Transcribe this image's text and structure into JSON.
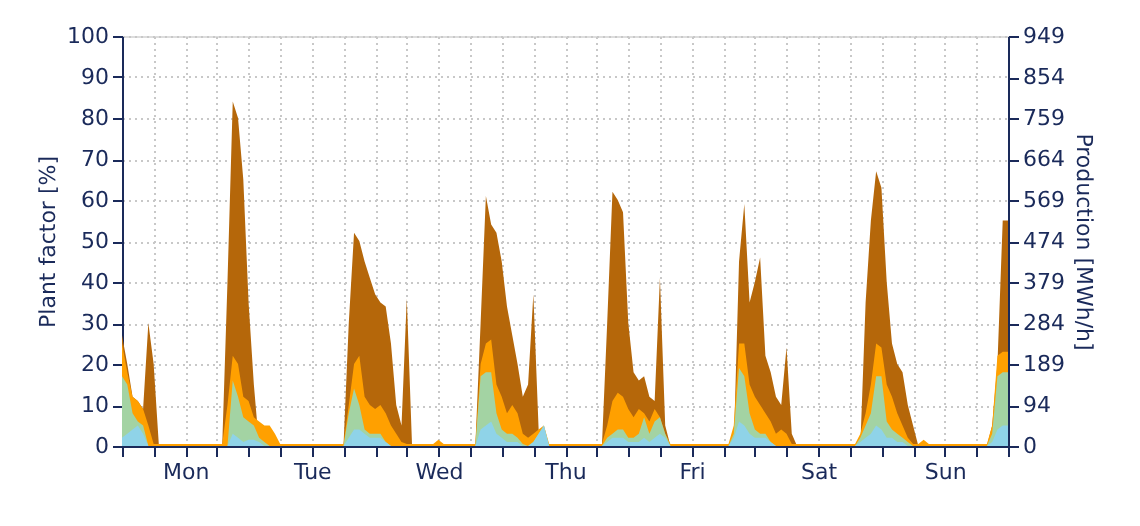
{
  "chart_data": {
    "type": "area",
    "ylabel": "Plant factor [%]",
    "y2label": "Production [MWh/h]",
    "ylim": [
      0,
      100
    ],
    "yticks": [
      0,
      10,
      20,
      30,
      40,
      50,
      60,
      70,
      80,
      90,
      100
    ],
    "y2lim": [
      0,
      949
    ],
    "y2ticks": [
      0,
      94,
      189,
      284,
      379,
      474,
      569,
      664,
      759,
      854,
      949
    ],
    "categories": [
      null,
      null,
      null,
      null,
      null,
      null,
      null,
      null,
      null,
      null,
      null,
      null,
      "Mon",
      null,
      null,
      null,
      null,
      null,
      null,
      null,
      null,
      null,
      null,
      null,
      null,
      null,
      null,
      null,
      null,
      null,
      null,
      null,
      null,
      null,
      null,
      null,
      "Tue",
      null,
      null,
      null,
      null,
      null,
      null,
      null,
      null,
      null,
      null,
      null,
      null,
      null,
      null,
      null,
      null,
      null,
      null,
      null,
      null,
      null,
      null,
      null,
      "Wed",
      null,
      null,
      null,
      null,
      null,
      null,
      null,
      null,
      null,
      null,
      null,
      null,
      null,
      null,
      null,
      null,
      null,
      null,
      null,
      null,
      null,
      null,
      null,
      "Thu",
      null,
      null,
      null,
      null,
      null,
      null,
      null,
      null,
      null,
      null,
      null,
      null,
      null,
      null,
      null,
      null,
      null,
      null,
      null,
      null,
      null,
      null,
      null,
      "Fri",
      null,
      null,
      null,
      null,
      null,
      null,
      null,
      null,
      null,
      null,
      null,
      null,
      null,
      null,
      null,
      null,
      null,
      null,
      null,
      null,
      null,
      null,
      null,
      "Sat",
      null,
      null,
      null,
      null,
      null,
      null,
      null,
      null,
      null,
      null,
      null,
      null,
      null,
      null,
      null,
      null,
      null,
      null,
      null,
      null,
      null,
      null,
      null,
      "Sun",
      null,
      null,
      null,
      null,
      null,
      null,
      null,
      null,
      null,
      null,
      null,
      null
    ],
    "grid": true,
    "series": [
      {
        "color": "#b5670a",
        "values": [
          27,
          20,
          12,
          11,
          9,
          30,
          20,
          0,
          0,
          0,
          0,
          0,
          0,
          0,
          0,
          0,
          0,
          0,
          0,
          0,
          40,
          84,
          80,
          65,
          35,
          15,
          0,
          0,
          0,
          0,
          0,
          0,
          0,
          0,
          0,
          0,
          0,
          0,
          0,
          0,
          0,
          0,
          0,
          30,
          52,
          50,
          45,
          41,
          37,
          35,
          34,
          25,
          10,
          5,
          36,
          0,
          0,
          0,
          0,
          0,
          0,
          0,
          0,
          0,
          0,
          0,
          0,
          0,
          30,
          61,
          54,
          52,
          45,
          34,
          27,
          20,
          12,
          15,
          37,
          4,
          0,
          0,
          0,
          0,
          0,
          0,
          0,
          0,
          0,
          0,
          0,
          0,
          30,
          62,
          60,
          57,
          30,
          18,
          16,
          17,
          12,
          11,
          41,
          5,
          0,
          0,
          0,
          0,
          0,
          0,
          0,
          0,
          0,
          0,
          0,
          0,
          0,
          45,
          59,
          35,
          40,
          46,
          22,
          18,
          12,
          10,
          24,
          3,
          0,
          0,
          0,
          0,
          0,
          0,
          0,
          0,
          0,
          0,
          0,
          0,
          0,
          35,
          55,
          67,
          63,
          40,
          25,
          20,
          18,
          10,
          5,
          0,
          0,
          0,
          0,
          0,
          0,
          0,
          0,
          0,
          0,
          0,
          0,
          0,
          0,
          5,
          20,
          55,
          55
        ]
      },
      {
        "color": "#ffa000",
        "values": [
          25,
          18,
          12,
          11,
          9,
          5,
          0.5,
          0.5,
          0.5,
          0.5,
          0.5,
          0.5,
          0.5,
          0.5,
          0.5,
          0.5,
          0.5,
          0.5,
          0.5,
          0.5,
          10,
          22,
          20,
          12,
          11,
          7,
          6,
          5,
          5,
          3,
          0.5,
          0.5,
          0.5,
          0.5,
          0.5,
          0.5,
          0.5,
          0.5,
          0.5,
          0.5,
          0.5,
          0.5,
          0.5,
          10,
          20,
          22,
          12,
          10,
          9,
          10,
          8,
          5,
          3,
          1,
          0.5,
          0.5,
          0.5,
          0.5,
          0.5,
          0.5,
          1.5,
          0.5,
          0.5,
          0.5,
          0.5,
          0.5,
          0.5,
          0.5,
          20,
          25,
          26,
          15,
          12,
          8,
          10,
          8,
          3,
          2,
          3,
          4,
          5,
          0.5,
          0.5,
          0.5,
          0.5,
          0.5,
          0.5,
          0.5,
          0.5,
          0.5,
          0.5,
          0.5,
          5,
          11,
          13,
          12,
          9,
          7,
          9,
          8,
          6,
          9,
          7,
          3,
          0.5,
          0.5,
          0.5,
          0.5,
          0.5,
          0.5,
          0.5,
          0.5,
          0.5,
          0.5,
          0.5,
          0.5,
          5,
          25,
          25,
          15,
          12,
          10,
          8,
          6,
          3,
          4,
          3,
          0.5,
          0.5,
          0.5,
          0.5,
          0.5,
          0.5,
          0.5,
          0.5,
          0.5,
          0.5,
          0.5,
          0.5,
          0.5,
          3,
          8,
          15,
          25,
          24,
          15,
          12,
          8,
          5,
          2,
          0.5,
          0.5,
          1.5,
          0.5,
          0.5,
          0.5,
          0.5,
          0.5,
          0.5,
          0.5,
          0.5,
          0.5,
          0.5,
          0.5,
          0.5,
          5,
          22,
          23,
          23
        ]
      },
      {
        "color": "#a3d3a3",
        "values": [
          17,
          15,
          8,
          6,
          5,
          0,
          0,
          0,
          0,
          0,
          0,
          0,
          0,
          0,
          0,
          0,
          0,
          0,
          0,
          0,
          0,
          16,
          12,
          7,
          6,
          5,
          2,
          1,
          0,
          0,
          0,
          0,
          0,
          0,
          0,
          0,
          0,
          0,
          0,
          0,
          0,
          0,
          0,
          8,
          14,
          10,
          4,
          3,
          3,
          3,
          1,
          0,
          0,
          0,
          0,
          0,
          0,
          0,
          0,
          0,
          0,
          0,
          0,
          0,
          0,
          0,
          0,
          0,
          17,
          18,
          18,
          8,
          4,
          3,
          3,
          2,
          0.5,
          0,
          1,
          3,
          5,
          0,
          0,
          0,
          0,
          0,
          0,
          0,
          0,
          0,
          0,
          0,
          2,
          3,
          4,
          4,
          2,
          2,
          3,
          7,
          3,
          6,
          7,
          3,
          0,
          0,
          0,
          0,
          0,
          0,
          0,
          0,
          0,
          0,
          0,
          0,
          3,
          19,
          17,
          8,
          4,
          3,
          3,
          1,
          0,
          0,
          0,
          0,
          0,
          0,
          0,
          0,
          0,
          0,
          0,
          0,
          0,
          0,
          0,
          0,
          2,
          5,
          8,
          17,
          17,
          6,
          4,
          3,
          2,
          1,
          0,
          0,
          0,
          0,
          0,
          0,
          0,
          0,
          0,
          0,
          0,
          0,
          0,
          0,
          0,
          3,
          17,
          18,
          18
        ]
      },
      {
        "color": "#8fd3e8",
        "values": [
          2,
          3,
          4,
          5,
          3,
          0,
          0,
          0,
          0,
          0,
          0,
          0,
          0,
          0,
          0,
          0,
          0,
          0,
          0,
          0,
          0,
          3,
          2,
          1,
          1.5,
          1.5,
          1,
          0,
          0,
          0,
          0,
          0,
          0,
          0,
          0,
          0,
          0,
          0,
          0,
          0,
          0,
          0,
          0,
          2,
          4,
          4,
          3,
          2,
          2,
          2,
          1,
          0,
          0,
          0,
          0,
          0,
          0,
          0,
          0,
          0,
          0,
          0,
          0,
          0,
          0,
          0,
          0,
          0,
          4,
          5,
          6,
          3,
          2,
          1,
          1,
          1,
          0,
          0,
          1,
          3,
          5,
          0,
          0,
          0,
          0,
          0,
          0,
          0,
          0,
          0,
          0,
          0,
          1,
          2,
          2,
          2,
          1,
          1,
          1,
          2,
          1,
          2,
          3,
          2,
          0,
          0,
          0,
          0,
          0,
          0,
          0,
          0,
          0,
          0,
          0,
          0,
          2,
          6,
          5,
          3,
          2,
          2,
          2,
          1,
          0,
          0,
          0,
          0,
          0,
          0,
          0,
          0,
          0,
          0,
          0,
          0,
          0,
          0,
          0,
          0,
          1,
          2,
          3,
          5,
          4,
          2,
          2,
          1,
          1,
          0,
          0,
          0,
          0,
          0,
          0,
          0,
          0,
          0,
          0,
          0,
          0,
          0,
          0,
          0,
          0,
          1,
          4,
          5,
          5
        ]
      }
    ]
  }
}
